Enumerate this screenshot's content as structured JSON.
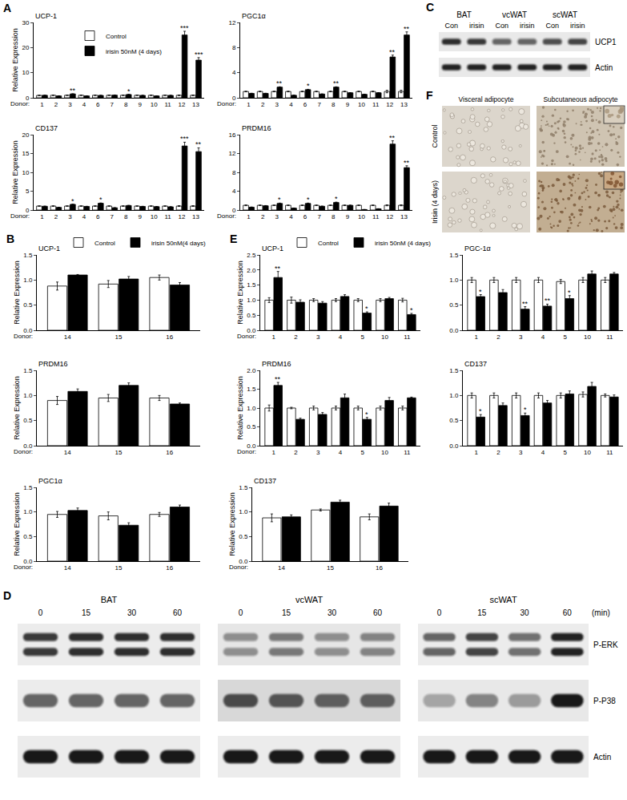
{
  "chart_data": [
    {
      "type": "bar",
      "panel": "A",
      "title": "UCP-1",
      "xlabel": "Donor:",
      "ylabel": "Relative Expression",
      "legend": "top left",
      "categories": [
        "1",
        "2",
        "3",
        "4",
        "6",
        "7",
        "8",
        "9",
        "10",
        "11",
        "12",
        "13"
      ],
      "series": [
        {
          "name": "Control",
          "color": "#ffffff",
          "values": [
            0.95,
            1.0,
            1.0,
            1.0,
            1.0,
            1.0,
            1.0,
            1.0,
            1.0,
            1.0,
            1.0,
            1.0
          ],
          "errors": [
            0.08,
            0.05,
            0.05,
            0.05,
            0.05,
            0.05,
            0.05,
            0.05,
            0.05,
            0.05,
            0.1,
            0.1
          ]
        },
        {
          "name": "irisin 50nM (4 days)",
          "color": "#000000",
          "values": [
            1.0,
            0.75,
            1.55,
            0.75,
            0.95,
            1.05,
            1.3,
            0.95,
            0.75,
            0.95,
            25,
            15
          ],
          "errors": [
            0.05,
            0.05,
            0.05,
            0.05,
            0.05,
            0.08,
            0.05,
            0.05,
            0.05,
            0.05,
            1.5,
            1.0
          ],
          "significance": [
            null,
            null,
            "**",
            null,
            null,
            null,
            "*",
            null,
            null,
            null,
            "***",
            "***"
          ]
        }
      ],
      "ylim": [
        0,
        30
      ],
      "yticks": [
        0,
        10,
        20,
        30
      ]
    },
    {
      "type": "bar",
      "panel": "A",
      "title": "PGC1α",
      "xlabel": "Donor:",
      "categories": [
        "1",
        "2",
        "3",
        "4",
        "6",
        "7",
        "8",
        "9",
        "10",
        "11",
        "12",
        "13"
      ],
      "series": [
        {
          "color": "#ffffff",
          "values": [
            1.0,
            1.0,
            1.0,
            1.0,
            1.0,
            1.0,
            1.0,
            1.0,
            1.0,
            1.0,
            1.0,
            1.0
          ],
          "errors": [
            0.05,
            0.05,
            0.05,
            0.05,
            0.05,
            0.05,
            0.05,
            0.05,
            0.05,
            0.05,
            0.2,
            0.2
          ]
        },
        {
          "color": "#000000",
          "values": [
            0.7,
            0.7,
            1.7,
            0.4,
            1.3,
            0.6,
            1.7,
            0.8,
            0.55,
            0.8,
            6.5,
            10
          ],
          "errors": [
            0.03,
            0.03,
            0.05,
            0.03,
            0.05,
            0.03,
            0.05,
            0.03,
            0.03,
            0.03,
            0.3,
            0.5
          ],
          "significance": [
            null,
            null,
            "**",
            null,
            "*",
            null,
            "**",
            null,
            null,
            null,
            "**",
            "**"
          ]
        }
      ],
      "ylim": [
        0,
        12
      ],
      "yticks": [
        0,
        4,
        8,
        12
      ]
    },
    {
      "type": "bar",
      "panel": "A",
      "title": "CD137",
      "xlabel": "Donor:",
      "ylabel": "Relative Expression",
      "categories": [
        "1",
        "2",
        "3",
        "4",
        "6",
        "7",
        "8",
        "9",
        "10",
        "11",
        "12",
        "13"
      ],
      "series": [
        {
          "color": "#ffffff",
          "values": [
            1.05,
            1.05,
            1.05,
            1.05,
            1.05,
            1.05,
            1.05,
            1.05,
            1.05,
            1.05,
            1.05,
            1.05
          ],
          "errors": [
            0.05,
            0.05,
            0.05,
            0.05,
            0.05,
            0.05,
            0.05,
            0.05,
            0.05,
            0.05,
            0.1,
            0.1
          ]
        },
        {
          "color": "#000000",
          "values": [
            1.0,
            0.7,
            1.5,
            0.95,
            1.8,
            0.6,
            1.2,
            0.95,
            0.9,
            0.85,
            17,
            15.5
          ],
          "errors": [
            0.05,
            0.05,
            0.05,
            0.05,
            0.08,
            0.03,
            0.05,
            0.05,
            0.05,
            0.03,
            1.0,
            1.0
          ],
          "significance": [
            null,
            null,
            "*",
            null,
            "*",
            null,
            null,
            null,
            null,
            null,
            "***",
            "**"
          ]
        }
      ],
      "ylim": [
        0,
        20
      ],
      "yticks": [
        0,
        5,
        10,
        15,
        20
      ]
    },
    {
      "type": "bar",
      "panel": "A",
      "title": "PRDM16",
      "xlabel": "Donor:",
      "categories": [
        "1",
        "2",
        "3",
        "4",
        "6",
        "7",
        "8",
        "9",
        "10",
        "11",
        "12",
        "13"
      ],
      "series": [
        {
          "color": "#ffffff",
          "values": [
            1.0,
            1.0,
            1.0,
            1.0,
            1.0,
            1.0,
            1.0,
            1.0,
            1.0,
            1.0,
            1.0,
            1.0
          ],
          "errors": [
            0.08,
            0.05,
            0.05,
            0.05,
            0.05,
            0.05,
            0.05,
            0.05,
            0.05,
            0.05,
            0.1,
            0.1
          ]
        },
        {
          "color": "#000000",
          "values": [
            0.6,
            0.9,
            1.4,
            0.4,
            1.4,
            0.8,
            1.6,
            1.0,
            0.1,
            0.25,
            14,
            9
          ],
          "errors": [
            0.05,
            0.05,
            0.08,
            0.03,
            0.08,
            0.05,
            0.08,
            0.05,
            0.02,
            0.03,
            0.7,
            0.4
          ],
          "significance": [
            null,
            null,
            "*",
            null,
            "*",
            null,
            "*",
            null,
            null,
            null,
            "**",
            "**"
          ]
        }
      ],
      "ylim": [
        0,
        16
      ],
      "yticks": [
        0,
        4,
        8,
        12,
        16
      ]
    },
    {
      "type": "bar",
      "panel": "B",
      "title": "UCP-1",
      "xlabel": "Donor:",
      "ylabel": "Relative Expression",
      "legend": "top",
      "categories": [
        "14",
        "15",
        "16"
      ],
      "series": [
        {
          "name": "Control",
          "color": "#ffffff",
          "values": [
            0.88,
            0.92,
            1.05
          ],
          "errors": [
            0.08,
            0.07,
            0.05
          ]
        },
        {
          "name": "irisin 50nM(4 days)",
          "color": "#000000",
          "values": [
            1.1,
            1.02,
            0.9
          ],
          "errors": [
            0.01,
            0.05,
            0.05
          ]
        }
      ],
      "ylim": [
        0,
        1.5
      ],
      "yticks": [
        {
          "value": 0,
          "label": "0.0"
        },
        0.5,
        {
          "value": 1,
          "label": "1.0"
        },
        1.5
      ]
    },
    {
      "type": "bar",
      "panel": "B",
      "title": "PRDM16",
      "xlabel": "Donor:",
      "ylabel": "Relative Expression",
      "categories": [
        "14",
        "15",
        "16"
      ],
      "series": [
        {
          "color": "#ffffff",
          "values": [
            0.9,
            0.95,
            0.95
          ],
          "errors": [
            0.08,
            0.07,
            0.05
          ]
        },
        {
          "color": "#000000",
          "values": [
            1.08,
            1.2,
            0.83
          ],
          "errors": [
            0.05,
            0.05,
            0.02
          ]
        }
      ],
      "ylim": [
        0,
        1.5
      ],
      "yticks": [
        {
          "value": 0,
          "label": "0.0"
        },
        0.5,
        {
          "value": 1,
          "label": "1.0"
        },
        1.5
      ]
    },
    {
      "type": "bar",
      "panel": "B",
      "title": "PGC1α",
      "xlabel": "Donor:",
      "ylabel": "Relative Expression",
      "categories": [
        "14",
        "15",
        "16"
      ],
      "series": [
        {
          "color": "#ffffff",
          "values": [
            0.95,
            0.92,
            0.95
          ],
          "errors": [
            0.06,
            0.08,
            0.04
          ]
        },
        {
          "color": "#000000",
          "values": [
            1.03,
            0.73,
            1.1
          ],
          "errors": [
            0.05,
            0.05,
            0.04
          ]
        }
      ],
      "ylim": [
        0,
        1.5
      ],
      "yticks": [
        {
          "value": 0,
          "label": "0.0"
        },
        0.5,
        {
          "value": 1,
          "label": "1.0"
        },
        1.5
      ]
    },
    {
      "type": "bar",
      "panel": "B",
      "title": "CD137",
      "xlabel": "Donor:",
      "ylabel": "Relative Expression",
      "categories": [
        "14",
        "15",
        "16"
      ],
      "series": [
        {
          "color": "#ffffff",
          "values": [
            0.88,
            1.04,
            0.9
          ],
          "errors": [
            0.08,
            0.02,
            0.06
          ]
        },
        {
          "color": "#000000",
          "values": [
            0.9,
            1.2,
            1.12
          ],
          "errors": [
            0.04,
            0.04,
            0.06
          ]
        }
      ],
      "ylim": [
        0,
        1.5
      ],
      "yticks": [
        {
          "value": 0,
          "label": "0.0"
        },
        0.5,
        {
          "value": 1,
          "label": "1.0"
        },
        1.5
      ]
    },
    {
      "type": "bar",
      "panel": "E",
      "title": "UCP-1",
      "xlabel": "Donor:",
      "ylabel": "Relative Expression",
      "legend": "top",
      "categories": [
        "1",
        "2",
        "3",
        "4",
        "5",
        "10",
        "11"
      ],
      "series": [
        {
          "name": "Control",
          "color": "#ffffff",
          "values": [
            1.0,
            1.0,
            1.0,
            1.0,
            1.0,
            1.0,
            1.0
          ],
          "errors": [
            0.08,
            0.1,
            0.05,
            0.05,
            0.05,
            0.05,
            0.06
          ]
        },
        {
          "name": "irisin 50nM (4 days)",
          "color": "#000000",
          "values": [
            1.75,
            0.93,
            0.9,
            1.12,
            0.57,
            1.05,
            0.52
          ],
          "errors": [
            0.2,
            0.08,
            0.05,
            0.06,
            0.04,
            0.04,
            0.04
          ],
          "significance": [
            "**",
            null,
            null,
            null,
            "*",
            null,
            "*"
          ]
        }
      ],
      "ylim": [
        0,
        2.5
      ],
      "yticks": [
        {
          "value": 0,
          "label": "0.0"
        },
        0.5,
        {
          "value": 1,
          "label": "1.0"
        },
        1.5,
        {
          "value": 2,
          "label": "2.0"
        },
        2.5
      ]
    },
    {
      "type": "bar",
      "panel": "E",
      "title": "PGC-1α",
      "categories": [
        "1",
        "2",
        "3",
        "4",
        "5",
        "10",
        "11"
      ],
      "series": [
        {
          "color": "#ffffff",
          "values": [
            1.0,
            1.0,
            1.0,
            1.0,
            0.97,
            1.0,
            1.0
          ],
          "errors": [
            0.05,
            0.05,
            0.05,
            0.05,
            0.04,
            0.05,
            0.05
          ]
        },
        {
          "color": "#000000",
          "values": [
            0.67,
            0.75,
            0.42,
            0.48,
            0.63,
            1.12,
            1.12
          ],
          "errors": [
            0.04,
            0.06,
            0.05,
            0.04,
            0.06,
            0.06,
            0.03
          ],
          "significance": [
            "*",
            null,
            "**",
            "**",
            "*",
            null,
            null
          ]
        }
      ],
      "ylim": [
        0,
        1.5
      ],
      "yticks": [
        {
          "value": 0,
          "label": "0.0"
        },
        0.5,
        {
          "value": 1,
          "label": "1.0"
        },
        1.5
      ]
    },
    {
      "type": "bar",
      "panel": "E",
      "title": "PRDM16",
      "xlabel": "Donor:",
      "ylabel": "Relative Expression",
      "categories": [
        "1",
        "2",
        "3",
        "4",
        "5",
        "10",
        "11"
      ],
      "series": [
        {
          "color": "#ffffff",
          "values": [
            1.0,
            1.0,
            1.0,
            1.0,
            1.0,
            1.0,
            1.0
          ],
          "errors": [
            0.08,
            0.02,
            0.05,
            0.05,
            0.05,
            0.05,
            0.05
          ]
        },
        {
          "color": "#000000",
          "values": [
            1.6,
            0.7,
            0.83,
            1.27,
            0.7,
            1.2,
            1.27
          ],
          "errors": [
            0.08,
            0.03,
            0.05,
            0.1,
            0.05,
            0.08,
            0.02
          ],
          "significance": [
            "**",
            null,
            null,
            null,
            "*",
            null,
            null
          ]
        }
      ],
      "ylim": [
        0,
        2
      ],
      "yticks": [
        {
          "value": 0,
          "label": "0.0"
        },
        0.5,
        {
          "value": 1,
          "label": "1.0"
        },
        1.5,
        {
          "value": 2,
          "label": "2.0"
        }
      ]
    },
    {
      "type": "bar",
      "panel": "E",
      "title": "CD137",
      "categories": [
        "1",
        "2",
        "3",
        "4",
        "5",
        "10",
        "11"
      ],
      "series": [
        {
          "color": "#ffffff",
          "values": [
            1.0,
            1.0,
            1.0,
            1.0,
            1.0,
            1.02,
            1.0
          ],
          "errors": [
            0.05,
            0.05,
            0.05,
            0.05,
            0.05,
            0.05,
            0.03
          ]
        },
        {
          "color": "#000000",
          "values": [
            0.57,
            0.8,
            0.6,
            0.85,
            1.03,
            1.18,
            0.97
          ],
          "errors": [
            0.05,
            0.05,
            0.05,
            0.05,
            0.06,
            0.08,
            0.04
          ],
          "significance": [
            "*",
            null,
            "*",
            null,
            null,
            null,
            null
          ]
        }
      ],
      "ylim": [
        0,
        1.5
      ],
      "yticks": [
        {
          "value": 0,
          "label": "0.0"
        },
        0.5,
        {
          "value": 1,
          "label": "1.0"
        },
        1.5
      ]
    }
  ],
  "blots": [
    {
      "panel": "C",
      "groups": [
        "BAT",
        "vcWAT",
        "scWAT"
      ],
      "lanes": [
        "Con",
        "irisin"
      ],
      "rows": [
        "UCP1",
        "Actin"
      ]
    },
    {
      "panel": "D",
      "groups": [
        "BAT",
        "vcWAT",
        "scWAT"
      ],
      "lanes": [
        "0",
        "15",
        "30",
        "60"
      ],
      "unit": "(min)",
      "rows": [
        "P-ERK",
        "P-P38",
        "Actin"
      ]
    }
  ],
  "images": {
    "panel": "F",
    "columns": [
      "Visceral adipocyte",
      "Subcutaneous adipocyte"
    ],
    "rows": [
      "Control",
      "Irisin (4 days)"
    ]
  }
}
